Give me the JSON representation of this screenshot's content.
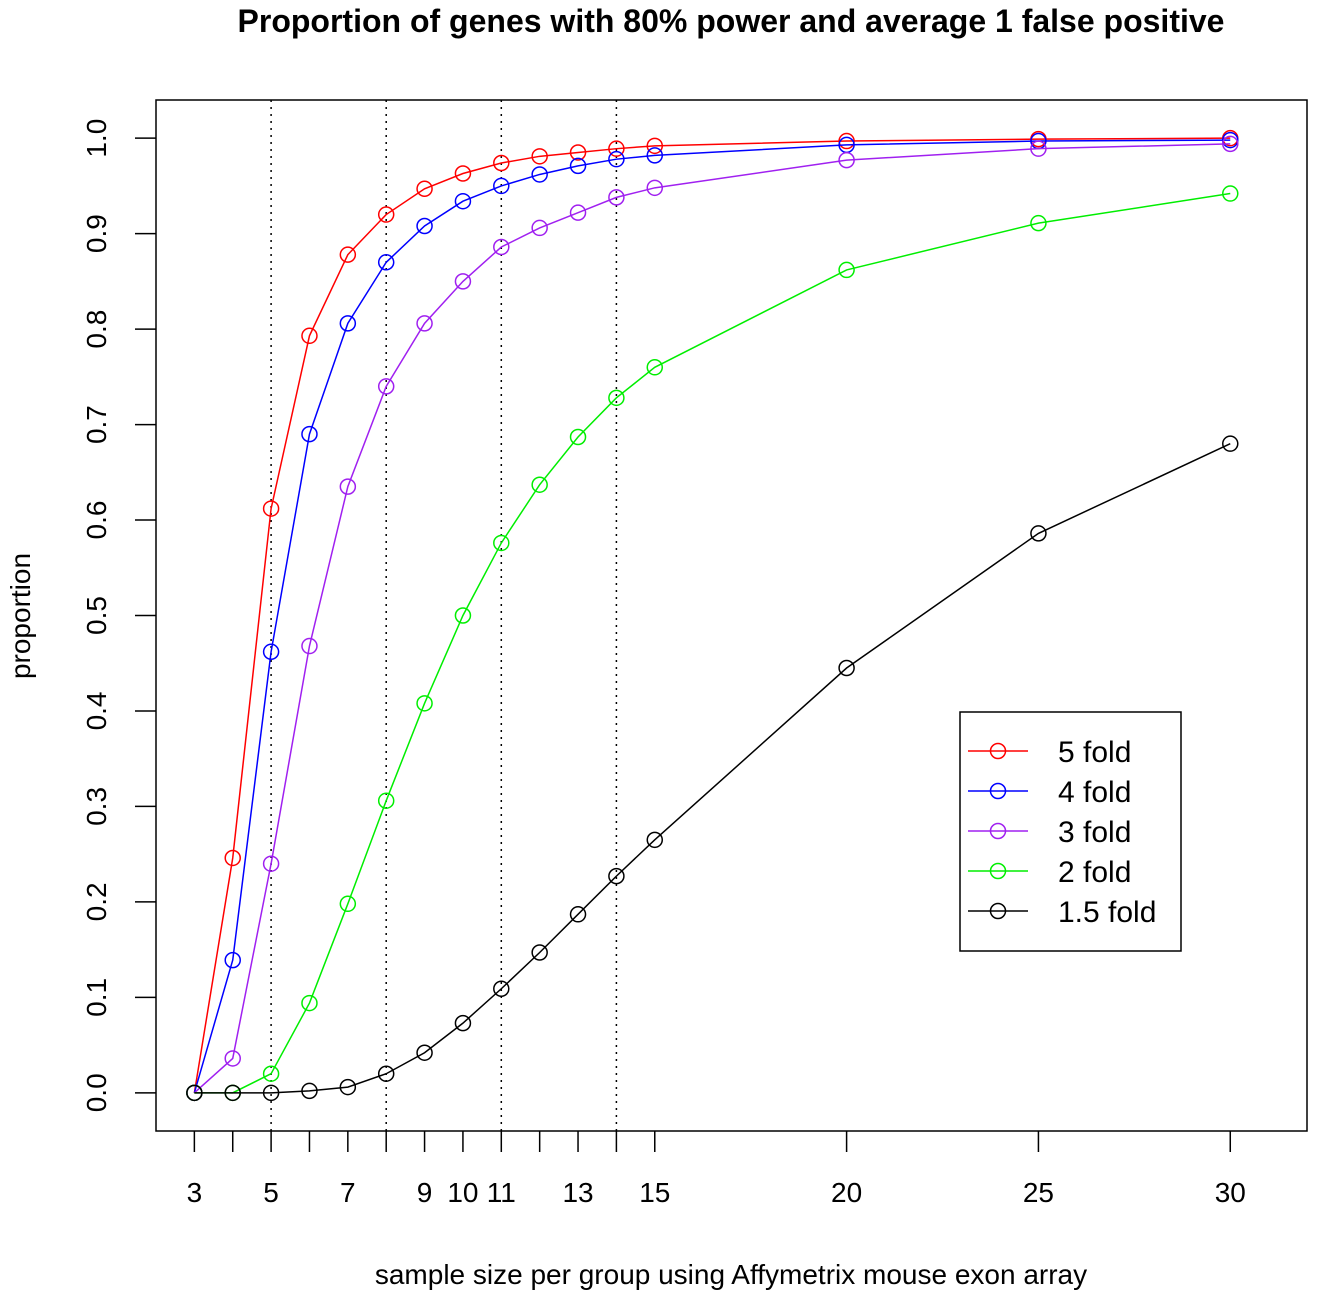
{
  "chart_data": {
    "type": "line",
    "title": "Proportion of genes with 80% power and average 1 false positive",
    "xlabel": "sample size per group using Affymetrix mouse exon array",
    "ylabel": "proportion",
    "x": [
      3,
      4,
      5,
      6,
      7,
      8,
      9,
      10,
      11,
      12,
      13,
      14,
      15,
      20,
      25,
      30
    ],
    "x_ticks": [
      3,
      4,
      5,
      6,
      7,
      8,
      9,
      10,
      11,
      12,
      13,
      14,
      15,
      20,
      25,
      30
    ],
    "x_tick_labels": [
      {
        "x": 3,
        "label": "3"
      },
      {
        "x": 5,
        "label": "5"
      },
      {
        "x": 7,
        "label": "7"
      },
      {
        "x": 9,
        "label": "9"
      },
      {
        "x": 10,
        "label": "10"
      },
      {
        "x": 11,
        "label": "11"
      },
      {
        "x": 13,
        "label": "13"
      },
      {
        "x": 15,
        "label": "15"
      },
      {
        "x": 20,
        "label": "20"
      },
      {
        "x": 25,
        "label": "25"
      },
      {
        "x": 30,
        "label": "30"
      }
    ],
    "y_ticks": [
      "0.0",
      "0.1",
      "0.2",
      "0.3",
      "0.4",
      "0.5",
      "0.6",
      "0.7",
      "0.8",
      "0.9",
      "1.0"
    ],
    "xlim": [
      2.0,
      32.0
    ],
    "ylim": [
      -0.04,
      1.04
    ],
    "vlines": [
      5,
      8,
      11,
      14
    ],
    "grid": false,
    "legend_position": "right",
    "series": [
      {
        "name": "5 fold",
        "color": "#ff0000",
        "values": [
          0.0,
          0.246,
          0.612,
          0.793,
          0.878,
          0.92,
          0.947,
          0.963,
          0.974,
          0.981,
          0.985,
          0.989,
          0.992,
          0.997,
          0.999,
          1.0
        ]
      },
      {
        "name": "4 fold",
        "color": "#0000ff",
        "values": [
          0.0,
          0.139,
          0.462,
          0.69,
          0.806,
          0.87,
          0.908,
          0.934,
          0.95,
          0.962,
          0.971,
          0.978,
          0.982,
          0.993,
          0.997,
          0.998
        ]
      },
      {
        "name": "3 fold",
        "color": "#a020f0",
        "values": [
          0.0,
          0.036,
          0.24,
          0.468,
          0.635,
          0.74,
          0.806,
          0.85,
          0.886,
          0.906,
          0.922,
          0.938,
          0.948,
          0.977,
          0.989,
          0.994
        ]
      },
      {
        "name": "2 fold",
        "color": "#00ee00",
        "values": [
          0.0,
          0.0,
          0.02,
          0.094,
          0.198,
          0.306,
          0.408,
          0.5,
          0.576,
          0.637,
          0.687,
          0.728,
          0.76,
          0.862,
          0.911,
          0.942
        ]
      },
      {
        "name": "1.5 fold",
        "color": "#000000",
        "values": [
          0.0,
          0.0,
          0.0,
          0.002,
          0.006,
          0.02,
          0.042,
          0.073,
          0.109,
          0.147,
          0.187,
          0.227,
          0.265,
          0.445,
          0.586,
          0.68
        ]
      }
    ]
  }
}
